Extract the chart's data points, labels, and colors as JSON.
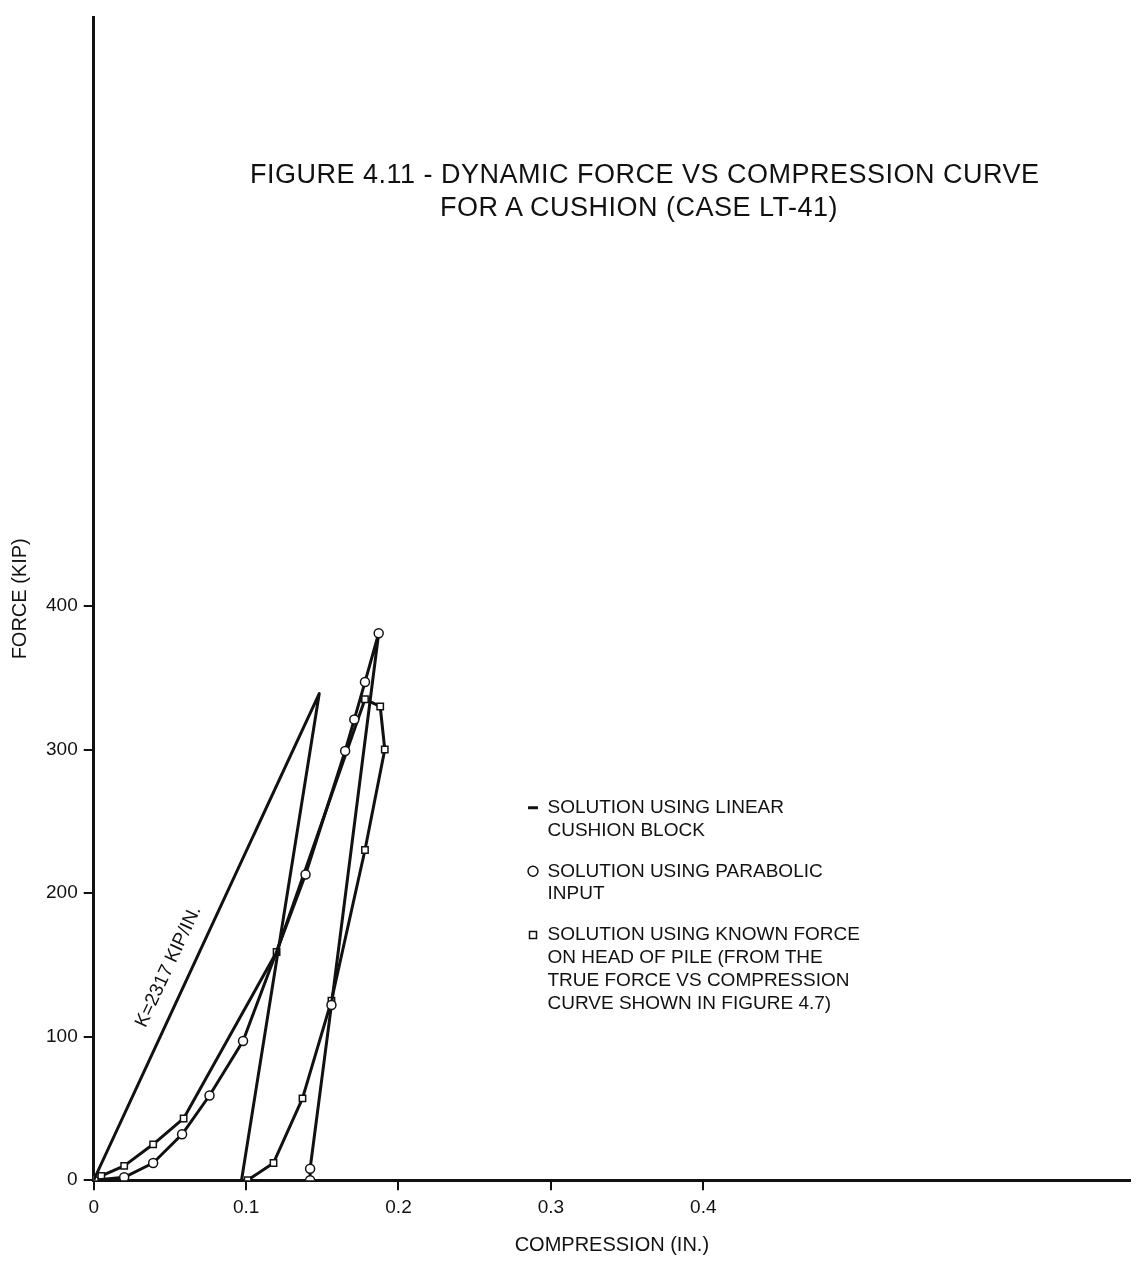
{
  "chart_data": {
    "type": "line",
    "title": "FIGURE 4.11 - DYNAMIC FORCE VS COMPRESSION CURVE FOR A CUSHION (CASE LT-41)",
    "xlabel": "COMPRESSION (IN.)",
    "ylabel": "FORCE (KIP)",
    "xlim": [
      0,
      0.68
    ],
    "xticks": [
      0,
      0.1,
      0.2,
      0.3,
      0.4
    ],
    "ylim": [
      0,
      810
    ],
    "yticks": [
      0,
      100,
      200,
      300,
      400
    ],
    "grid": false,
    "legend": "right",
    "series": [
      {
        "name": "SOLUTION USING LINEAR CUSHION BLOCK",
        "color": "#111111",
        "marker": "none",
        "x": [
          0,
          0.148,
          0.097
        ],
        "values": [
          0,
          339,
          0
        ]
      },
      {
        "name": "SOLUTION USING PARABOLIC INPUT",
        "color": "#111111",
        "marker": "circle",
        "x": [
          0,
          0.02,
          0.039,
          0.058,
          0.076,
          0.098,
          0.139,
          0.165,
          0.171,
          0.178,
          0.187,
          0.156,
          0.142,
          0.142
        ],
        "values": [
          0,
          2,
          12,
          32,
          59,
          97,
          213,
          299,
          321,
          347,
          381,
          122,
          8,
          0
        ]
      },
      {
        "name": "SOLUTION USING KNOWN FORCE ON HEAD OF PILE (FROM THE TRUE FORCE VS COMPRESSION CURVE SHOWN IN FIGURE 4.7)",
        "color": "#111111",
        "marker": "square",
        "x": [
          0.005,
          0.02,
          0.039,
          0.059,
          0.12,
          0.178,
          0.188,
          0.191,
          0.178,
          0.156,
          0.137,
          0.118,
          0.101
        ],
        "values": [
          3,
          10,
          25,
          43,
          159,
          335,
          330,
          300,
          230,
          125,
          57,
          12,
          0
        ]
      }
    ],
    "annotations": [
      "K=2317 KIP/IN."
    ]
  }
}
